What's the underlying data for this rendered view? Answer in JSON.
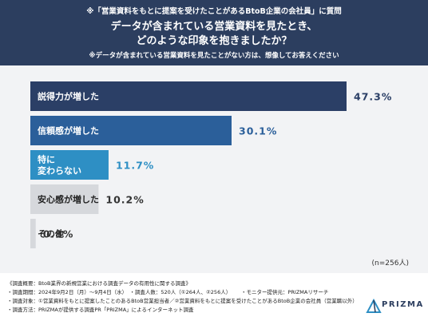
{
  "header": {
    "note1": "※「営業資料をもとに提案を受けたことがあるBtoB企業の会社員」に質問",
    "title_line1": "データが含まれている営業資料を見たとき、",
    "title_line2": "どのような印象を抱きましたか？",
    "note2": "※データが含まれている営業資料を見たことがない方は、想像してお答えください"
  },
  "chart_data": {
    "type": "bar",
    "orientation": "horizontal",
    "categories": [
      "説得力が増した",
      "信頼感が増した",
      "特に変わらない",
      "安心感が増した",
      "その他"
    ],
    "category_lines": [
      [
        "説得力が増した"
      ],
      [
        "信頼感が増した"
      ],
      [
        "特に",
        "変わらない"
      ],
      [
        "安心感が増した"
      ],
      [
        "その他"
      ]
    ],
    "values": [
      47.3,
      30.1,
      11.7,
      10.2,
      0.8
    ],
    "value_labels": [
      "47.3%",
      "30.1%",
      "11.7%",
      "10.2%",
      "0.8%"
    ],
    "bar_colors": [
      "#2b3f66",
      "#2b5f9a",
      "#2e8fc4",
      "#d6d8dc",
      "#d6d8dc"
    ],
    "label_colors": [
      "#ffffff",
      "#ffffff",
      "#ffffff",
      "#222222",
      "#222222"
    ],
    "value_colors": [
      "#2b3f66",
      "#2b5f9a",
      "#2e8fc4",
      "#333333",
      "#333333"
    ],
    "xlim": [
      0,
      47.3
    ]
  },
  "sample_size": "(n=256人)",
  "footer": {
    "line1": "《調査概要：BtoB業界の新規営業における調査データの有用性に関する調査》",
    "line2": "・調査期間：2024年9月2日（月）〜9月4日（水）　・調査人数：520人（①264人、②256人）",
    "monitor": "・モニター提供元：PRIZMAリサーチ",
    "line3": "・調査対象：①営業資料をもとに提案したことのあるBtoB営業担当者／②営業資料をもとに提案を受けたことがあるBtoB企業の会社員（営業職以外）",
    "line4": "・調査方法：PRIZMAが提供する調査PR「PRIZMA」によるインターネット調査"
  },
  "logo_text": "PRIZMA",
  "colors": {
    "header_bg": "#2c3e5f",
    "chart_bg": "#f2f3f5",
    "accent": "#2e8fc4"
  }
}
